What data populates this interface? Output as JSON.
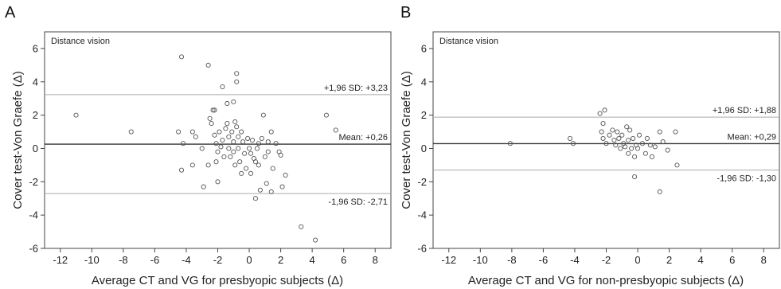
{
  "chart_data": [
    {
      "type": "scatter",
      "panel_label": "A",
      "inner_label": "Distance vision",
      "title": "",
      "xlabel": "Average CT and VG for presbyopic subjects (Δ)",
      "ylabel": "Cover test-Von Graefe (Δ)",
      "xlim": [
        -13,
        9
      ],
      "ylim": [
        -6,
        7
      ],
      "xticks": [
        -12,
        -10,
        -8,
        -6,
        -4,
        -2,
        0,
        2,
        4,
        6,
        8
      ],
      "yticks": [
        -6,
        -4,
        -2,
        0,
        2,
        4,
        6
      ],
      "grid": false,
      "reference_lines": [
        {
          "y": 3.23,
          "label": "+1,96 SD: +3,23",
          "style": "upper"
        },
        {
          "y": 0.26,
          "label": "Mean: +0,26",
          "style": "mean"
        },
        {
          "y": -2.71,
          "label": "-1,96 SD: -2,71",
          "style": "lower"
        }
      ],
      "points": [
        [
          -11.0,
          2.0
        ],
        [
          -7.5,
          1.0
        ],
        [
          -4.3,
          5.5
        ],
        [
          -4.5,
          1.0
        ],
        [
          -4.2,
          0.3
        ],
        [
          -4.3,
          -1.3
        ],
        [
          -3.6,
          1.0
        ],
        [
          -3.6,
          -1.0
        ],
        [
          -3.4,
          0.7
        ],
        [
          -3.0,
          0.0
        ],
        [
          -2.9,
          -2.3
        ],
        [
          -2.6,
          5.0
        ],
        [
          -2.6,
          -1.0
        ],
        [
          -2.5,
          1.8
        ],
        [
          -2.4,
          1.5
        ],
        [
          -2.3,
          2.3
        ],
        [
          -2.2,
          2.3
        ],
        [
          -2.2,
          0.8
        ],
        [
          -2.1,
          0.3
        ],
        [
          -2.0,
          -0.2
        ],
        [
          -2.1,
          -0.8
        ],
        [
          -2.0,
          -2.0
        ],
        [
          -1.9,
          1.0
        ],
        [
          -1.8,
          0.1
        ],
        [
          -1.7,
          3.7
        ],
        [
          -1.7,
          0.5
        ],
        [
          -1.6,
          -0.5
        ],
        [
          -1.5,
          1.2
        ],
        [
          -1.4,
          2.7
        ],
        [
          -1.4,
          1.5
        ],
        [
          -1.3,
          0.7
        ],
        [
          -1.3,
          0.0
        ],
        [
          -1.2,
          -0.5
        ],
        [
          -1.1,
          1.0
        ],
        [
          -1.0,
          2.8
        ],
        [
          -1.0,
          0.4
        ],
        [
          -1.0,
          -0.2
        ],
        [
          -0.9,
          1.6
        ],
        [
          -0.9,
          -1.0
        ],
        [
          -0.8,
          4.5
        ],
        [
          -0.8,
          4.0
        ],
        [
          -0.8,
          1.3
        ],
        [
          -0.7,
          0.7
        ],
        [
          -0.7,
          0.0
        ],
        [
          -0.6,
          -0.8
        ],
        [
          -0.5,
          1.0
        ],
        [
          -0.5,
          -1.5
        ],
        [
          -0.4,
          0.4
        ],
        [
          -0.3,
          -0.3
        ],
        [
          -0.2,
          -1.2
        ],
        [
          -0.1,
          0.6
        ],
        [
          0.0,
          0.0
        ],
        [
          0.1,
          -0.3
        ],
        [
          0.1,
          -1.5
        ],
        [
          0.2,
          0.5
        ],
        [
          0.3,
          -0.6
        ],
        [
          0.4,
          -0.8
        ],
        [
          0.4,
          -3.0
        ],
        [
          0.5,
          0.0
        ],
        [
          0.6,
          0.3
        ],
        [
          0.6,
          -1.0
        ],
        [
          0.7,
          -2.5
        ],
        [
          0.8,
          0.6
        ],
        [
          0.9,
          2.0
        ],
        [
          1.0,
          -0.5
        ],
        [
          1.1,
          -2.1
        ],
        [
          1.2,
          -0.2
        ],
        [
          1.2,
          0.4
        ],
        [
          1.4,
          1.0
        ],
        [
          1.4,
          -2.6
        ],
        [
          1.5,
          -1.2
        ],
        [
          1.7,
          0.3
        ],
        [
          1.9,
          -0.2
        ],
        [
          2.0,
          -0.4
        ],
        [
          2.1,
          -2.3
        ],
        [
          2.3,
          -1.6
        ],
        [
          3.3,
          -4.7
        ],
        [
          4.2,
          -5.5
        ],
        [
          4.9,
          2.0
        ],
        [
          5.5,
          1.1
        ]
      ]
    },
    {
      "type": "scatter",
      "panel_label": "B",
      "inner_label": "Distance vision",
      "title": "",
      "xlabel": "Average CT and VG for non-presbyopic subjects (Δ)",
      "ylabel": "Cover test-Von Graefe (Δ)",
      "xlim": [
        -13,
        9
      ],
      "ylim": [
        -6,
        7
      ],
      "xticks": [
        -12,
        -10,
        -8,
        -6,
        -4,
        -2,
        0,
        2,
        4,
        6,
        8
      ],
      "yticks": [
        -6,
        -4,
        -2,
        0,
        2,
        4,
        6
      ],
      "grid": false,
      "reference_lines": [
        {
          "y": 1.88,
          "label": "+1,96 SD: +1,88",
          "style": "upper"
        },
        {
          "y": 0.29,
          "label": "Mean: +0,29",
          "style": "mean"
        },
        {
          "y": -1.3,
          "label": "-1,96 SD: -1,30",
          "style": "lower"
        }
      ],
      "points": [
        [
          -8.1,
          0.3
        ],
        [
          -4.3,
          0.6
        ],
        [
          -4.1,
          0.3
        ],
        [
          -2.4,
          2.1
        ],
        [
          -2.1,
          2.3
        ],
        [
          -2.2,
          1.5
        ],
        [
          -2.3,
          1.0
        ],
        [
          -2.2,
          0.6
        ],
        [
          -2.0,
          0.3
        ],
        [
          -1.8,
          0.8
        ],
        [
          -1.6,
          1.1
        ],
        [
          -1.5,
          0.5
        ],
        [
          -1.4,
          0.2
        ],
        [
          -1.3,
          1.0
        ],
        [
          -1.2,
          0.6
        ],
        [
          -1.1,
          0.0
        ],
        [
          -1.0,
          0.8
        ],
        [
          -0.9,
          0.3
        ],
        [
          -0.8,
          0.1
        ],
        [
          -0.7,
          1.3
        ],
        [
          -0.6,
          0.5
        ],
        [
          -0.6,
          -0.3
        ],
        [
          -0.5,
          1.1
        ],
        [
          -0.4,
          0.0
        ],
        [
          -0.3,
          0.6
        ],
        [
          -0.2,
          -1.7
        ],
        [
          -0.2,
          -0.5
        ],
        [
          -0.1,
          0.2
        ],
        [
          0.0,
          0.0
        ],
        [
          0.1,
          0.8
        ],
        [
          0.3,
          0.3
        ],
        [
          0.5,
          -0.3
        ],
        [
          0.6,
          0.6
        ],
        [
          0.8,
          0.2
        ],
        [
          0.9,
          -0.5
        ],
        [
          1.1,
          0.1
        ],
        [
          1.4,
          1.0
        ],
        [
          1.4,
          -2.6
        ],
        [
          1.6,
          0.4
        ],
        [
          1.9,
          -0.1
        ],
        [
          2.4,
          1.0
        ],
        [
          2.5,
          -1.0
        ]
      ]
    }
  ]
}
